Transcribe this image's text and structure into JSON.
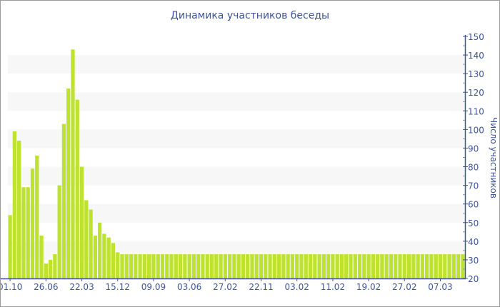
{
  "chart_data": {
    "type": "bar",
    "title": "Динамика участников беседы",
    "xlabel": "",
    "ylabel": "Число участников",
    "ylim": [
      20,
      150
    ],
    "yticks": [
      20,
      30,
      40,
      50,
      60,
      70,
      80,
      90,
      100,
      110,
      120,
      130,
      140,
      150
    ],
    "y_axis_position": "right",
    "grid": "alternating horizontal bands",
    "xtick_labels": [
      "01.10",
      "26.06",
      "22.03",
      "15.12",
      "09.09",
      "03.06",
      "27.02",
      "22.11",
      "03.02",
      "11.02",
      "19.02",
      "27.02",
      "07.03"
    ],
    "xtick_every_n_bars": 8,
    "values": [
      54,
      99,
      94,
      69,
      69,
      79,
      86,
      43,
      28,
      30,
      33,
      70,
      103,
      122,
      143,
      116,
      80,
      62,
      57,
      43,
      50,
      44,
      42,
      39,
      34,
      33,
      33,
      33,
      33,
      33,
      33,
      33,
      33,
      33,
      33,
      33,
      33,
      33,
      33,
      33,
      33,
      33,
      33,
      33,
      33,
      33,
      33,
      33,
      33,
      33,
      33,
      33,
      33,
      33,
      33,
      33,
      33,
      33,
      33,
      33,
      33,
      33,
      33,
      33,
      33,
      33,
      33,
      33,
      33,
      33,
      33,
      33,
      33,
      33,
      33,
      33,
      33,
      33,
      33,
      33,
      33,
      33,
      33,
      33,
      33,
      33,
      33,
      33,
      33,
      33,
      33,
      33,
      33,
      33,
      33,
      33,
      33,
      33,
      33,
      33,
      33,
      33
    ],
    "bar_color": "#bde22f",
    "text_color": "#3e5597"
  }
}
